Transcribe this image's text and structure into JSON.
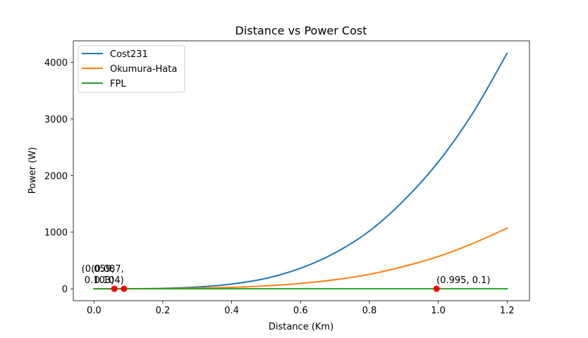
{
  "chart_data": {
    "type": "line",
    "title": "Distance vs Power Cost",
    "xlabel": "Distance (Km)",
    "ylabel": "Power (W)",
    "xlim": [
      -0.06,
      1.265
    ],
    "ylim": [
      -210,
      4380
    ],
    "x_ticks": [
      0.0,
      0.2,
      0.4,
      0.6,
      0.8,
      1.0,
      1.2
    ],
    "x_tick_labels": [
      "0.0",
      "0.2",
      "0.4",
      "0.6",
      "0.8",
      "1.0",
      "1.2"
    ],
    "y_ticks": [
      0,
      1000,
      2000,
      3000,
      4000
    ],
    "y_tick_labels": [
      "0",
      "1000",
      "2000",
      "3000",
      "4000"
    ],
    "grid": false,
    "legend_position": "top-left",
    "series": [
      {
        "name": "Cost231",
        "color": "#1f77b4",
        "x": [
          0.0,
          0.1,
          0.2,
          0.3,
          0.4,
          0.5,
          0.6,
          0.7,
          0.8,
          0.9,
          1.0,
          1.1,
          1.2
        ],
        "values": [
          0,
          1,
          8,
          31,
          84,
          185,
          363,
          635,
          1020,
          1560,
          2240,
          3100,
          4160
        ]
      },
      {
        "name": "Okumura-Hata",
        "color": "#ff7f0e",
        "x": [
          0.0,
          0.1,
          0.2,
          0.3,
          0.4,
          0.5,
          0.6,
          0.7,
          0.8,
          0.9,
          1.0,
          1.1,
          1.2
        ],
        "values": [
          0,
          0.5,
          3,
          11,
          26,
          52,
          95,
          160,
          255,
          395,
          570,
          800,
          1070
        ]
      },
      {
        "name": "FPL",
        "color": "#2ca02c",
        "x": [
          0.0,
          0.2,
          0.4,
          0.6,
          0.8,
          1.0,
          1.2
        ],
        "values": [
          0,
          0,
          0,
          0,
          0,
          0,
          0
        ]
      }
    ],
    "points": [
      {
        "x": 0.059,
        "y": 0.103,
        "label_line1": "(0.059,",
        "label_line2": "0.103)"
      },
      {
        "x": 0.087,
        "y": 0.104,
        "label_line1": "(0.087,",
        "label_line2": "0.104)"
      },
      {
        "x": 0.995,
        "y": 0.1,
        "label_line1": "(0.995, 0.1)",
        "label_line2": ""
      }
    ],
    "point_color": "#ff0000"
  }
}
